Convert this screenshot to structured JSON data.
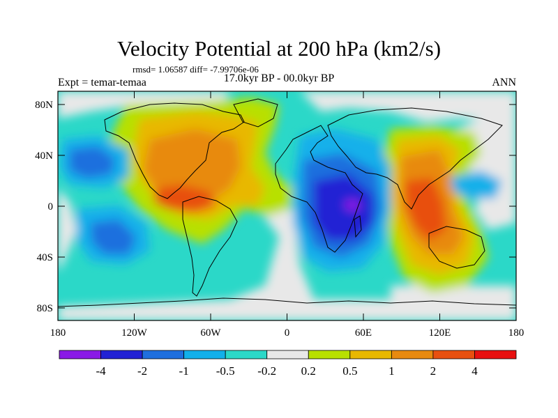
{
  "title": "Velocity Potential at 200 hPa (km2/s)",
  "stats": "rmsd= 1.06587 diff= -7.99706e-06",
  "left_label": "Expt = temar-temaa",
  "center_label": "17.0kyr BP - 00.0kyr BP",
  "right_label": "ANN",
  "lat_ticks": [
    "80N",
    "40N",
    "0",
    "40S",
    "80S"
  ],
  "lon_ticks": [
    "180",
    "120W",
    "60W",
    "0",
    "60E",
    "120E",
    "180"
  ],
  "colorbar": {
    "labels": [
      "-4",
      "-2",
      "-1",
      "-0.5",
      "-0.2",
      "0.2",
      "0.5",
      "1",
      "2",
      "4"
    ],
    "colors": [
      "#8a1ae6",
      "#2222d4",
      "#1f6fde",
      "#12b0ea",
      "#2bd8c8",
      "#e8e8e8",
      "#b8e000",
      "#e8b800",
      "#e88a10",
      "#e85010",
      "#e81010"
    ]
  },
  "chart_data": {
    "type": "heatmap",
    "title": "Velocity Potential at 200 hPa (km2/s)",
    "xlim": [
      -180,
      180
    ],
    "ylim": [
      -90,
      90
    ],
    "levels": [
      -4,
      -2,
      -1,
      -0.5,
      -0.2,
      0.2,
      0.5,
      1,
      2,
      4
    ],
    "centers": [
      {
        "lon": 55,
        "lat": 0,
        "value": -4.5
      },
      {
        "lon": -100,
        "lat": 5,
        "value": 3
      },
      {
        "lon": 110,
        "lat": 0,
        "value": 3
      },
      {
        "lon": -160,
        "lat": 30,
        "value": -1.5
      },
      {
        "lon": -150,
        "lat": -20,
        "value": -1.5
      },
      {
        "lon": 150,
        "lat": 15,
        "value": -0.7
      }
    ]
  }
}
